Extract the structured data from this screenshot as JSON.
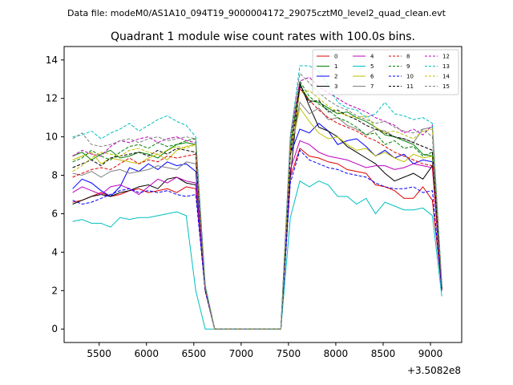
{
  "suptitle": "Data file: modeM0/AS1A10_094T19_9000004172_29075cztM0_level2_quad_clean.evt",
  "chart_data": {
    "type": "line",
    "title": "Quadrant 1 module wise count rates with 100.0s bins.",
    "xlabel": "",
    "ylabel": "",
    "x_offset_label": "+3.5082e8",
    "xlim": [
      5130,
      9330
    ],
    "ylim": [
      -0.7,
      14.7
    ],
    "xticks": [
      5500,
      6000,
      6500,
      7000,
      7500,
      8000,
      8500,
      9000
    ],
    "yticks": [
      0,
      2,
      4,
      6,
      8,
      10,
      12,
      14
    ],
    "grid": false,
    "legend_position": "top-right",
    "legend_columns": 4,
    "x": [
      5220,
      5320,
      5420,
      5520,
      5620,
      5720,
      5820,
      5920,
      6020,
      6120,
      6220,
      6320,
      6420,
      6520,
      6620,
      6720,
      6820,
      6920,
      7020,
      7120,
      7220,
      7320,
      7420,
      7520,
      7620,
      7720,
      7820,
      7920,
      8020,
      8120,
      8220,
      8320,
      8420,
      8520,
      8620,
      8720,
      8820,
      8920,
      9020,
      9120
    ],
    "series": [
      {
        "name": "0",
        "color": "#e00000",
        "dash": "solid",
        "values": [
          6.6,
          6.7,
          6.9,
          7.1,
          6.9,
          7.0,
          7.2,
          7.3,
          7.1,
          7.2,
          7.3,
          7.1,
          7.4,
          7.3,
          2.0,
          0.0,
          0.0,
          0.0,
          0.0,
          0.0,
          0.0,
          0.0,
          0.0,
          7.9,
          9.4,
          9.0,
          8.9,
          8.7,
          8.6,
          8.3,
          8.2,
          8.1,
          7.5,
          7.4,
          7.2,
          6.8,
          6.8,
          7.4,
          6.7,
          2.1
        ]
      },
      {
        "name": "1",
        "color": "#008000",
        "dash": "solid",
        "values": [
          9.0,
          9.2,
          8.8,
          9.1,
          9.3,
          8.9,
          9.0,
          9.2,
          9.1,
          8.9,
          9.3,
          9.6,
          9.7,
          9.6,
          2.2,
          0.0,
          0.0,
          0.0,
          0.0,
          0.0,
          0.0,
          0.0,
          0.0,
          9.5,
          12.7,
          11.9,
          11.8,
          11.5,
          11.2,
          11.3,
          11.0,
          10.8,
          10.5,
          10.1,
          10.0,
          9.8,
          9.6,
          9.1,
          9.0,
          2.2
        ]
      },
      {
        "name": "2",
        "color": "#0000ff",
        "dash": "solid",
        "values": [
          7.3,
          7.8,
          7.6,
          7.2,
          6.9,
          7.4,
          8.4,
          8.2,
          8.6,
          8.3,
          8.7,
          8.5,
          8.6,
          8.2,
          2.1,
          0.0,
          0.0,
          0.0,
          0.0,
          0.0,
          0.0,
          0.0,
          0.0,
          9.1,
          10.4,
          10.2,
          10.7,
          10.3,
          9.6,
          9.8,
          9.9,
          9.5,
          9.0,
          9.3,
          8.9,
          9.1,
          8.6,
          8.8,
          8.7,
          2.0
        ]
      },
      {
        "name": "3",
        "color": "#000000",
        "dash": "solid",
        "values": [
          6.5,
          6.7,
          6.9,
          7.0,
          6.9,
          7.1,
          7.2,
          7.4,
          7.5,
          7.3,
          7.8,
          7.9,
          7.6,
          7.5,
          2.0,
          0.0,
          0.0,
          0.0,
          0.0,
          0.0,
          0.0,
          0.0,
          0.0,
          7.9,
          12.8,
          11.6,
          10.5,
          10.3,
          10.0,
          9.5,
          9.2,
          8.9,
          8.6,
          8.1,
          7.7,
          7.9,
          8.1,
          7.8,
          8.5,
          2.1
        ]
      },
      {
        "name": "4",
        "color": "#bf00bf",
        "dash": "solid",
        "values": [
          7.1,
          7.4,
          7.2,
          7.0,
          7.4,
          7.5,
          7.3,
          7.0,
          7.4,
          7.8,
          7.6,
          7.9,
          7.7,
          7.6,
          2.0,
          0.0,
          0.0,
          0.0,
          0.0,
          0.0,
          0.0,
          0.0,
          0.0,
          8.3,
          9.8,
          9.6,
          9.2,
          9.0,
          8.9,
          8.8,
          8.6,
          8.4,
          8.5,
          8.5,
          8.3,
          8.4,
          8.6,
          8.5,
          8.4,
          2.0
        ]
      },
      {
        "name": "5",
        "color": "#00bfbf",
        "dash": "solid",
        "values": [
          5.6,
          5.7,
          5.5,
          5.5,
          5.3,
          5.8,
          5.7,
          5.8,
          5.8,
          5.9,
          6.0,
          6.1,
          5.9,
          2.0,
          0.0,
          0.0,
          0.0,
          0.0,
          0.0,
          0.0,
          0.0,
          0.0,
          0.0,
          5.8,
          7.7,
          7.4,
          7.7,
          7.5,
          6.9,
          6.9,
          6.5,
          6.8,
          6.0,
          6.6,
          6.4,
          6.2,
          6.2,
          6.3,
          5.9,
          1.7
        ]
      },
      {
        "name": "6",
        "color": "#bfbf00",
        "dash": "solid",
        "values": [
          8.8,
          9.0,
          9.2,
          8.6,
          8.9,
          8.8,
          8.7,
          8.6,
          8.9,
          9.1,
          8.8,
          9.3,
          9.5,
          9.6,
          2.2,
          0.0,
          0.0,
          0.0,
          0.0,
          0.0,
          0.0,
          0.0,
          0.0,
          9.2,
          11.5,
          10.8,
          10.2,
          9.9,
          10.0,
          9.6,
          9.3,
          9.4,
          9.0,
          9.2,
          8.9,
          8.7,
          9.1,
          8.9,
          9.0,
          2.2
        ]
      },
      {
        "name": "7",
        "color": "#808080",
        "dash": "solid",
        "values": [
          8.1,
          8.0,
          8.2,
          7.9,
          8.2,
          8.3,
          8.1,
          8.2,
          8.3,
          8.5,
          8.4,
          8.3,
          8.7,
          8.6,
          2.1,
          0.0,
          0.0,
          0.0,
          0.0,
          0.0,
          0.0,
          0.0,
          0.0,
          9.0,
          11.8,
          11.2,
          11.5,
          10.9,
          11.0,
          10.6,
          10.4,
          10.1,
          10.4,
          10.3,
          10.0,
          9.9,
          9.7,
          10.4,
          10.5,
          2.3
        ]
      },
      {
        "name": "8",
        "color": "#e00000",
        "dash": "dashed",
        "values": [
          7.9,
          8.1,
          8.3,
          8.4,
          8.3,
          8.6,
          8.9,
          8.6,
          8.8,
          8.7,
          9.0,
          8.9,
          9.0,
          9.1,
          2.1,
          0.0,
          0.0,
          0.0,
          0.0,
          0.0,
          0.0,
          0.0,
          0.0,
          9.3,
          12.5,
          11.9,
          11.4,
          11.0,
          10.7,
          10.5,
          10.3,
          10.0,
          9.8,
          9.5,
          9.2,
          9.0,
          8.8,
          8.6,
          8.5,
          2.1
        ]
      },
      {
        "name": "9",
        "color": "#008000",
        "dash": "dashed",
        "values": [
          8.7,
          8.9,
          9.3,
          9.0,
          8.8,
          9.2,
          9.5,
          9.6,
          9.4,
          9.7,
          9.5,
          9.6,
          9.8,
          9.9,
          2.3,
          0.0,
          0.0,
          0.0,
          0.0,
          0.0,
          0.0,
          0.0,
          0.0,
          9.8,
          12.9,
          12.1,
          11.7,
          11.4,
          11.0,
          10.8,
          10.5,
          10.1,
          10.2,
          9.6,
          9.8,
          9.4,
          9.5,
          9.0,
          9.2,
          2.2
        ]
      },
      {
        "name": "10",
        "color": "#0000ff",
        "dash": "dashed",
        "values": [
          6.7,
          6.5,
          6.6,
          6.8,
          7.0,
          7.2,
          7.3,
          7.1,
          7.2,
          7.1,
          7.2,
          7.0,
          6.9,
          7.0,
          2.0,
          0.0,
          0.0,
          0.0,
          0.0,
          0.0,
          0.0,
          0.0,
          0.0,
          7.6,
          9.3,
          8.8,
          8.6,
          8.4,
          8.3,
          8.1,
          8.0,
          7.9,
          7.6,
          7.4,
          7.3,
          7.3,
          7.4,
          7.1,
          7.2,
          2.0
        ]
      },
      {
        "name": "11",
        "color": "#000000",
        "dash": "dashed",
        "values": [
          8.4,
          8.6,
          8.8,
          8.5,
          8.9,
          9.0,
          9.1,
          9.2,
          9.0,
          9.3,
          9.1,
          9.4,
          9.3,
          9.2,
          2.1,
          0.0,
          0.0,
          0.0,
          0.0,
          0.0,
          0.0,
          0.0,
          0.0,
          9.0,
          12.6,
          11.8,
          11.9,
          11.3,
          11.4,
          11.1,
          10.9,
          10.6,
          10.4,
          10.2,
          10.0,
          9.9,
          9.7,
          9.5,
          9.3,
          2.1
        ]
      },
      {
        "name": "12",
        "color": "#bf00bf",
        "dash": "dashed",
        "values": [
          9.0,
          9.3,
          9.1,
          9.0,
          9.5,
          9.8,
          9.7,
          9.9,
          10.0,
          9.7,
          9.9,
          10.0,
          9.8,
          9.7,
          2.2,
          0.0,
          0.0,
          0.0,
          0.0,
          0.0,
          0.0,
          0.0,
          0.0,
          9.9,
          12.9,
          13.1,
          12.6,
          12.3,
          12.0,
          11.7,
          11.5,
          11.3,
          11.0,
          10.8,
          10.6,
          10.2,
          10.4,
          10.1,
          10.6,
          2.2
        ]
      },
      {
        "name": "13",
        "color": "#00bfbf",
        "dash": "dashed",
        "values": [
          10.0,
          10.1,
          10.3,
          9.9,
          10.2,
          10.4,
          10.7,
          10.3,
          10.6,
          10.9,
          11.1,
          10.8,
          10.6,
          10.0,
          2.3,
          0.0,
          0.0,
          0.0,
          0.0,
          0.0,
          0.0,
          0.0,
          0.0,
          10.0,
          13.7,
          13.7,
          13.4,
          12.7,
          11.8,
          11.5,
          11.4,
          11.0,
          11.2,
          11.8,
          11.2,
          11.1,
          10.9,
          11.0,
          10.7,
          2.4
        ]
      },
      {
        "name": "14",
        "color": "#bfbf00",
        "dash": "dashed",
        "values": [
          8.2,
          8.5,
          8.9,
          9.2,
          9.1,
          9.0,
          9.3,
          9.4,
          9.2,
          9.1,
          9.3,
          9.5,
          9.4,
          9.6,
          2.2,
          0.0,
          0.0,
          0.0,
          0.0,
          0.0,
          0.0,
          0.0,
          0.0,
          9.3,
          12.3,
          12.4,
          12.0,
          11.6,
          11.3,
          11.1,
          11.0,
          11.1,
          10.5,
          10.2,
          10.3,
          10.1,
          9.9,
          10.3,
          10.4,
          2.3
        ]
      },
      {
        "name": "15",
        "color": "#808080",
        "dash": "dashed",
        "values": [
          9.9,
          10.2,
          9.6,
          9.5,
          9.6,
          9.8,
          9.9,
          9.7,
          9.9,
          10.0,
          9.8,
          9.9,
          10.0,
          9.9,
          2.2,
          0.0,
          0.0,
          0.0,
          0.0,
          0.0,
          0.0,
          0.0,
          0.0,
          10.1,
          13.3,
          12.8,
          12.3,
          11.9,
          11.6,
          11.4,
          11.1,
          10.9,
          10.7,
          10.8,
          10.5,
          10.3,
          10.2,
          10.4,
          10.0,
          2.2
        ]
      }
    ]
  }
}
